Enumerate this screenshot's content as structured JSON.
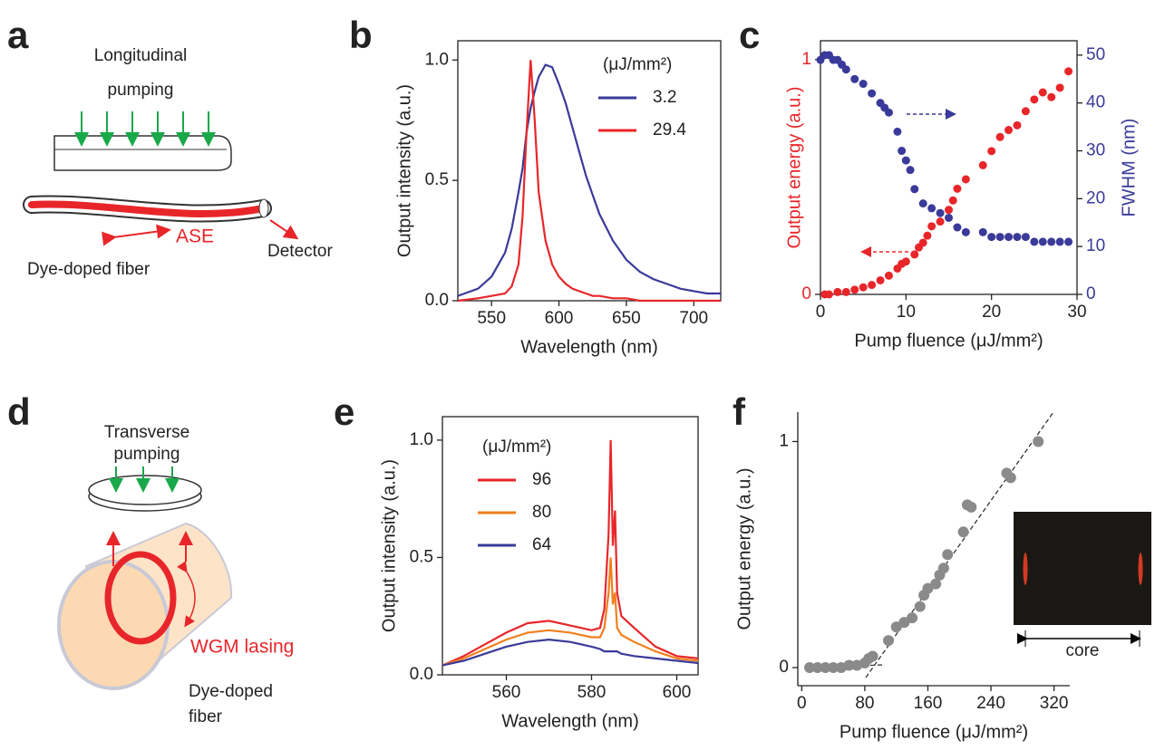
{
  "panel_labels": [
    "a",
    "b",
    "c",
    "d",
    "e",
    "f"
  ],
  "diagram_a": {
    "pump_label": [
      "Longitudinal",
      "pumping"
    ],
    "emission": "ASE",
    "detector": "Detector",
    "fiber": "Dye-doped fiber"
  },
  "diagram_d": {
    "pump_label": [
      "Transverse",
      "pumping"
    ],
    "emission": "WGM lasing",
    "fiber": [
      "Dye-doped",
      "fiber"
    ]
  },
  "inset_f": {
    "label": "core"
  },
  "chart_data": [
    {
      "type": "line",
      "xlabel": "Wavelength (nm)",
      "ylabel": "Output intensity (a.u.)",
      "legend_title": "(μJ/mm²)",
      "x": [
        525,
        540,
        550,
        560,
        565,
        570,
        573,
        576,
        579,
        582,
        585,
        590,
        595,
        600,
        605,
        610,
        615,
        620,
        625,
        630,
        640,
        650,
        660,
        670,
        680,
        690,
        700,
        710,
        720
      ],
      "xlim": [
        525,
        720
      ],
      "xticks": [
        550,
        600,
        650,
        700
      ],
      "ylim": [
        0,
        1.08
      ],
      "yticks": [
        {
          "value": 0,
          "label": "0.0"
        },
        0.5,
        {
          "value": 1,
          "label": "1.0"
        }
      ],
      "series": [
        {
          "name": "3.2",
          "color": "#3a3a9a",
          "values": [
            0.02,
            0.05,
            0.1,
            0.2,
            0.3,
            0.45,
            0.55,
            0.7,
            0.8,
            0.87,
            0.93,
            0.98,
            0.97,
            0.9,
            0.82,
            0.72,
            0.62,
            0.52,
            0.44,
            0.36,
            0.25,
            0.17,
            0.12,
            0.09,
            0.07,
            0.05,
            0.04,
            0.03,
            0.03
          ]
        },
        {
          "name": "29.4",
          "color": "#e8262a",
          "values": [
            0,
            0.01,
            0.02,
            0.03,
            0.06,
            0.15,
            0.35,
            0.7,
            1.0,
            0.75,
            0.45,
            0.25,
            0.15,
            0.1,
            0.07,
            0.05,
            0.04,
            0.03,
            0.02,
            0.02,
            0.01,
            0.01,
            0,
            0,
            0,
            0,
            0,
            0,
            0
          ]
        }
      ]
    },
    {
      "type": "scatter",
      "xlabel": "Pump fluence (μJ/mm²)",
      "ylabel": "Output energy (a.u.)",
      "y2label": "FWHM (nm)",
      "xlim": [
        0,
        30
      ],
      "xticks": [
        0,
        10,
        20,
        30
      ],
      "ylim": [
        0,
        1.08
      ],
      "yticks": [
        0,
        1
      ],
      "y2lim": [
        0,
        53
      ],
      "y2ticks": [
        0,
        10,
        20,
        30,
        40,
        50
      ],
      "series": [
        {
          "color": "#e8262a",
          "x": [
            0.5,
            1,
            2,
            3,
            4,
            5,
            6,
            7,
            8,
            9,
            9.5,
            10,
            11,
            11.5,
            12,
            12.5,
            13,
            14,
            15,
            15.5,
            16,
            17,
            19,
            20,
            21,
            22,
            23,
            24,
            25,
            26,
            27,
            28,
            29
          ],
          "y": [
            0,
            0,
            0.01,
            0.01,
            0.02,
            0.03,
            0.04,
            0.06,
            0.08,
            0.11,
            0.13,
            0.14,
            0.17,
            0.2,
            0.22,
            0.25,
            0.29,
            0.31,
            0.36,
            0.4,
            0.45,
            0.49,
            0.55,
            0.61,
            0.67,
            0.7,
            0.72,
            0.78,
            0.83,
            0.86,
            0.84,
            0.88,
            0.95
          ]
        },
        {
          "color": "#3a3a9a",
          "axis": "y2",
          "x": [
            0,
            0.5,
            1,
            1.5,
            2,
            2.5,
            3,
            4,
            5,
            6,
            7,
            7.5,
            8,
            9,
            9.5,
            10,
            10.5,
            11,
            12,
            13,
            14,
            15,
            16,
            17,
            19,
            20,
            21,
            22,
            23,
            24,
            25,
            26,
            27,
            28,
            29
          ],
          "y": [
            49,
            50,
            50,
            49,
            49,
            48,
            47,
            45,
            44,
            42,
            40,
            39,
            38,
            34,
            30,
            28,
            26,
            22,
            19,
            18,
            17,
            16,
            14,
            13,
            13,
            12,
            12,
            12,
            12,
            12,
            11,
            11,
            11,
            11,
            11
          ]
        }
      ]
    },
    {
      "type": "line",
      "xlabel": "Wavelength (nm)",
      "ylabel": "Output intensity (a.u.)",
      "legend_title": "(μJ/mm²)",
      "x": [
        545,
        550,
        555,
        560,
        565,
        570,
        575,
        580,
        582,
        583,
        584,
        584.5,
        585,
        585.5,
        586,
        587,
        590,
        595,
        600,
        605
      ],
      "xlim": [
        545,
        605
      ],
      "xticks": [
        560,
        580,
        600
      ],
      "ylim": [
        0,
        1.1
      ],
      "yticks": [
        {
          "value": 0,
          "label": "0.0"
        },
        0.5,
        {
          "value": 1,
          "label": "1.0"
        }
      ],
      "series": [
        {
          "name": "96",
          "color": "#e8262a",
          "values": [
            0.04,
            0.08,
            0.13,
            0.18,
            0.22,
            0.23,
            0.21,
            0.19,
            0.2,
            0.28,
            0.6,
            1.0,
            0.55,
            0.7,
            0.35,
            0.25,
            0.2,
            0.12,
            0.08,
            0.07
          ]
        },
        {
          "name": "80",
          "color": "#f07f1e",
          "values": [
            0.04,
            0.07,
            0.11,
            0.15,
            0.18,
            0.19,
            0.18,
            0.16,
            0.16,
            0.2,
            0.35,
            0.5,
            0.3,
            0.35,
            0.2,
            0.17,
            0.14,
            0.1,
            0.07,
            0.06
          ]
        },
        {
          "name": "64",
          "color": "#3a3a9a",
          "values": [
            0.04,
            0.06,
            0.09,
            0.12,
            0.14,
            0.15,
            0.14,
            0.12,
            0.11,
            0.1,
            0.1,
            0.1,
            0.1,
            0.1,
            0.1,
            0.09,
            0.08,
            0.07,
            0.06,
            0.05
          ]
        }
      ]
    },
    {
      "type": "scatter",
      "xlabel": "Pump fluence (μJ/mm²)",
      "ylabel": "Output energy (a.u.)",
      "xlim": [
        -5,
        340
      ],
      "xticks": [
        0,
        80,
        160,
        240,
        320
      ],
      "ylim": [
        -0.08,
        1.13
      ],
      "yticks": [
        0,
        1
      ],
      "series": [
        {
          "color": "#8a8a8a",
          "x": [
            10,
            20,
            30,
            40,
            50,
            60,
            70,
            80,
            85,
            90,
            110,
            120,
            130,
            140,
            150,
            155,
            160,
            170,
            175,
            180,
            185,
            205,
            210,
            215,
            260,
            265,
            300
          ],
          "y": [
            0,
            0,
            0,
            0,
            0,
            0.01,
            0.01,
            0.02,
            0.04,
            0.05,
            0.12,
            0.18,
            0.2,
            0.22,
            0.27,
            0.32,
            0.35,
            0.37,
            0.41,
            0.44,
            0.5,
            0.6,
            0.72,
            0.71,
            0.86,
            0.84,
            1.0
          ]
        }
      ]
    }
  ]
}
